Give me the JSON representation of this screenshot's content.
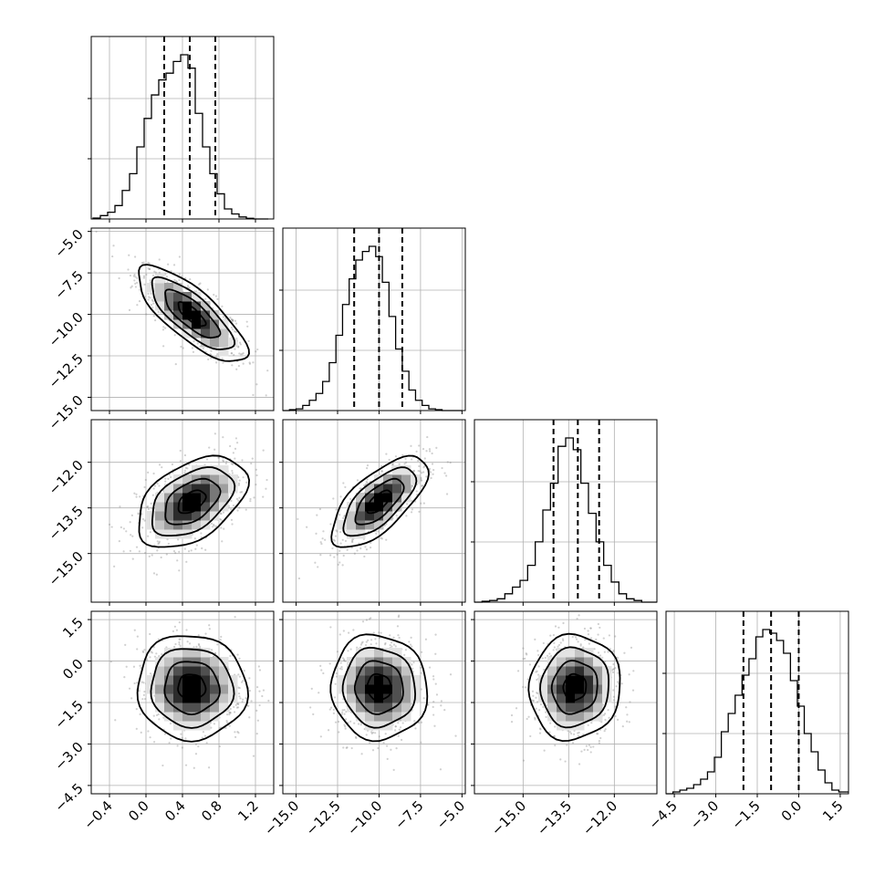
{
  "chart_data": {
    "type": "corner",
    "n_params": 4,
    "grid": true,
    "params": [
      {
        "range": [
          -0.6,
          1.4
        ],
        "ticks": [
          -0.4,
          0.0,
          0.4,
          0.8,
          1.2
        ],
        "tick_labels": [
          "−0.4",
          "0.0",
          "0.4",
          "0.8",
          "1.2"
        ],
        "quantiles": [
          0.2,
          0.48,
          0.76
        ],
        "hist_bins": [
          -0.58,
          -0.5,
          -0.42,
          -0.34,
          -0.26,
          -0.18,
          -0.1,
          -0.02,
          0.06,
          0.14,
          0.22,
          0.3,
          0.38,
          0.46,
          0.54,
          0.62,
          0.7,
          0.78,
          0.86,
          0.94,
          1.02,
          1.1,
          1.18,
          1.26,
          1.34
        ],
        "hist_counts": [
          0.005,
          0.02,
          0.04,
          0.08,
          0.17,
          0.27,
          0.43,
          0.6,
          0.74,
          0.83,
          0.87,
          0.94,
          0.98,
          0.9,
          0.63,
          0.43,
          0.27,
          0.15,
          0.06,
          0.03,
          0.012,
          0.004,
          0.0,
          0.0
        ]
      },
      {
        "range": [
          -15.8,
          -4.8
        ],
        "ticks": [
          -15.0,
          -12.5,
          -10.0,
          -7.5,
          -5.0
        ],
        "tick_labels": [
          "−15.0",
          "−12.5",
          "−10.0",
          "−7.5",
          "−5.0"
        ],
        "quantiles": [
          -11.5,
          -10.0,
          -8.6
        ],
        "hist_bins": [
          -15.8,
          -15.4,
          -15.0,
          -14.6,
          -14.2,
          -13.8,
          -13.4,
          -13.0,
          -12.6,
          -12.2,
          -11.8,
          -11.4,
          -11.0,
          -10.6,
          -10.2,
          -9.8,
          -9.4,
          -9.0,
          -8.6,
          -8.2,
          -7.8,
          -7.4,
          -7.0,
          -6.6,
          -6.2,
          -5.8,
          -5.4,
          -5.0
        ],
        "hist_counts": [
          0.0,
          0.005,
          0.01,
          0.03,
          0.06,
          0.1,
          0.17,
          0.28,
          0.44,
          0.62,
          0.77,
          0.88,
          0.93,
          0.96,
          0.9,
          0.75,
          0.55,
          0.36,
          0.23,
          0.12,
          0.06,
          0.03,
          0.01,
          0.005,
          0.0,
          0.0,
          0.0
        ]
      },
      {
        "range": [
          -16.6,
          -10.6
        ],
        "ticks": [
          -15.0,
          -13.5,
          -12.0
        ],
        "tick_labels": [
          "−15.0",
          "−13.5",
          "−12.0"
        ],
        "quantiles": [
          -14.0,
          -13.2,
          -12.5
        ],
        "hist_bins": [
          -16.6,
          -16.35,
          -16.1,
          -15.85,
          -15.6,
          -15.35,
          -15.1,
          -14.85,
          -14.6,
          -14.35,
          -14.1,
          -13.85,
          -13.6,
          -13.35,
          -13.1,
          -12.85,
          -12.6,
          -12.35,
          -12.1,
          -11.85,
          -11.6,
          -11.35,
          -11.1,
          -10.85,
          -10.6
        ],
        "hist_counts": [
          0.0,
          0.005,
          0.01,
          0.02,
          0.05,
          0.09,
          0.13,
          0.22,
          0.36,
          0.55,
          0.71,
          0.93,
          0.98,
          0.91,
          0.71,
          0.53,
          0.36,
          0.22,
          0.12,
          0.05,
          0.02,
          0.01,
          0.0,
          0.0
        ]
      },
      {
        "range": [
          -4.8,
          1.8
        ],
        "ticks": [
          -4.5,
          -3.0,
          -1.5,
          0.0,
          1.5
        ],
        "tick_labels": [
          "−4.5",
          "−3.0",
          "−1.5",
          "0.0",
          "1.5"
        ],
        "quantiles": [
          -2.0,
          -1.0,
          0.0
        ],
        "hist_bins": [
          -4.8,
          -4.55,
          -4.3,
          -4.05,
          -3.8,
          -3.55,
          -3.3,
          -3.05,
          -2.8,
          -2.55,
          -2.3,
          -2.05,
          -1.8,
          -1.55,
          -1.3,
          -1.05,
          -0.8,
          -0.55,
          -0.3,
          -0.05,
          0.2,
          0.45,
          0.7,
          0.95,
          1.2,
          1.45,
          1.8
        ],
        "hist_counts": [
          0.0,
          0.01,
          0.02,
          0.03,
          0.05,
          0.08,
          0.12,
          0.2,
          0.34,
          0.44,
          0.54,
          0.65,
          0.74,
          0.86,
          0.9,
          0.88,
          0.84,
          0.77,
          0.62,
          0.48,
          0.33,
          0.23,
          0.13,
          0.06,
          0.02,
          0.01
        ]
      }
    ],
    "correlations": [
      [
        1.0,
        -0.78,
        0.45,
        -0.03
      ],
      [
        -0.78,
        1.0,
        0.68,
        -0.04
      ],
      [
        0.45,
        0.68,
        1.0,
        0.05
      ],
      [
        -0.03,
        -0.04,
        0.05,
        1.0
      ]
    ],
    "centers": [
      0.5,
      -10.0,
      -13.3,
      -0.95
    ],
    "sigmas": [
      0.3,
      1.45,
      0.75,
      0.95
    ],
    "contour_levels_sigma": [
      0.5,
      1.0,
      1.5,
      2.0
    ],
    "density_colors": [
      "#ffffff",
      "#e3e3e3",
      "#c4c4c4",
      "#9f9f9f",
      "#787878",
      "#505050",
      "#2c2c2c",
      "#000000"
    ]
  }
}
